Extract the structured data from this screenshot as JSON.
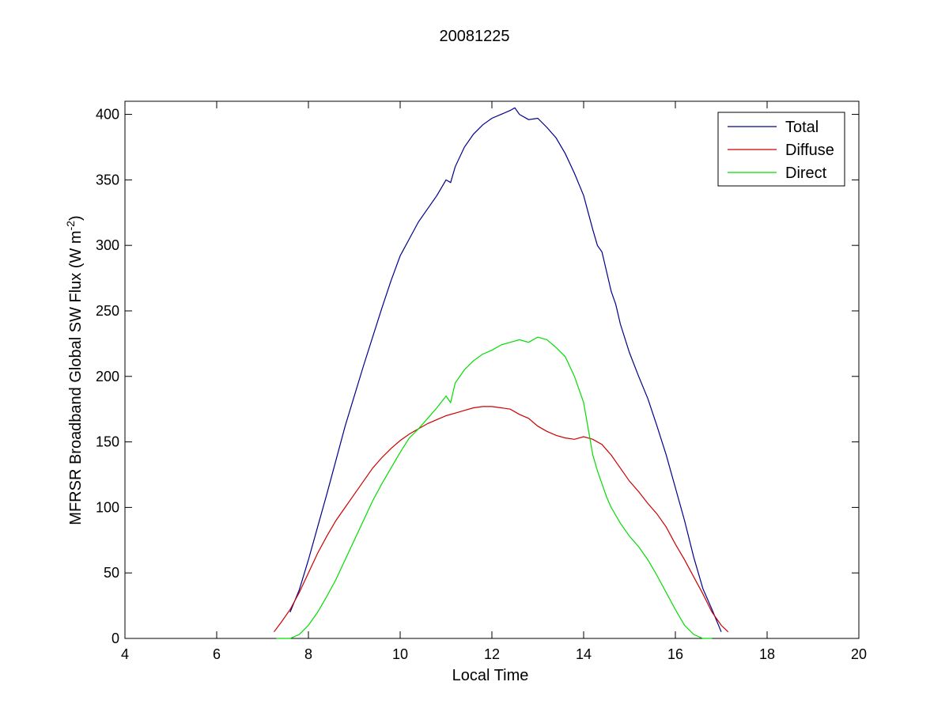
{
  "chart_data": {
    "type": "line",
    "title": "20081225",
    "xlabel": "Local Time",
    "ylabel_main": "MFRSR Broadband Global SW Flux (W m",
    "ylabel_sup": "-2",
    "ylabel_close": ")",
    "xlim": [
      4,
      20
    ],
    "ylim": [
      0,
      410
    ],
    "xticks": [
      4,
      6,
      8,
      10,
      12,
      14,
      16,
      18,
      20
    ],
    "yticks": [
      0,
      50,
      100,
      150,
      200,
      250,
      300,
      350,
      400
    ],
    "grid": false,
    "legend_position": "top-right",
    "series": [
      {
        "name": "Total",
        "color": "#00008b",
        "x": [
          7.6,
          7.8,
          8.0,
          8.2,
          8.4,
          8.6,
          8.8,
          9.0,
          9.2,
          9.4,
          9.6,
          9.8,
          10.0,
          10.2,
          10.4,
          10.6,
          10.8,
          11.0,
          11.1,
          11.2,
          11.4,
          11.6,
          11.8,
          12.0,
          12.2,
          12.4,
          12.5,
          12.6,
          12.8,
          13.0,
          13.2,
          13.4,
          13.6,
          13.8,
          14.0,
          14.1,
          14.2,
          14.3,
          14.4,
          14.5,
          14.6,
          14.7,
          14.8,
          15.0,
          15.2,
          15.4,
          15.6,
          15.8,
          16.0,
          16.2,
          16.4,
          16.6,
          16.8,
          17.0
        ],
        "y": [
          20,
          37,
          60,
          85,
          110,
          136,
          162,
          185,
          208,
          230,
          252,
          273,
          292,
          305,
          318,
          328,
          338,
          350,
          348,
          360,
          375,
          385,
          392,
          397,
          400,
          403,
          405,
          400,
          396,
          397,
          390,
          382,
          370,
          355,
          338,
          325,
          312,
          300,
          295,
          280,
          265,
          255,
          240,
          218,
          200,
          183,
          162,
          140,
          115,
          90,
          62,
          38,
          22,
          5
        ]
      },
      {
        "name": "Diffuse",
        "color": "#cc0000",
        "x": [
          7.25,
          7.4,
          7.6,
          7.8,
          8.0,
          8.2,
          8.4,
          8.6,
          8.8,
          9.0,
          9.2,
          9.4,
          9.6,
          9.8,
          10.0,
          10.2,
          10.4,
          10.6,
          10.8,
          11.0,
          11.2,
          11.4,
          11.6,
          11.8,
          12.0,
          12.2,
          12.4,
          12.6,
          12.8,
          13.0,
          13.2,
          13.4,
          13.6,
          13.8,
          14.0,
          14.2,
          14.4,
          14.6,
          14.8,
          15.0,
          15.2,
          15.4,
          15.6,
          15.8,
          16.0,
          16.2,
          16.4,
          16.6,
          16.8,
          17.0,
          17.15
        ],
        "y": [
          5,
          12,
          22,
          35,
          50,
          65,
          78,
          90,
          100,
          110,
          120,
          130,
          138,
          145,
          151,
          156,
          160,
          164,
          167,
          170,
          172,
          174,
          176,
          177,
          177,
          176,
          175,
          171,
          168,
          162,
          158,
          155,
          153,
          152,
          154,
          152,
          148,
          140,
          130,
          120,
          112,
          103,
          95,
          85,
          72,
          60,
          47,
          34,
          20,
          10,
          5
        ]
      },
      {
        "name": "Direct",
        "color": "#00dd00",
        "x": [
          7.3,
          7.6,
          7.8,
          8.0,
          8.2,
          8.4,
          8.6,
          8.8,
          9.0,
          9.2,
          9.4,
          9.6,
          9.8,
          10.0,
          10.2,
          10.4,
          10.6,
          10.8,
          11.0,
          11.1,
          11.2,
          11.4,
          11.6,
          11.8,
          12.0,
          12.2,
          12.4,
          12.6,
          12.8,
          13.0,
          13.2,
          13.4,
          13.6,
          13.8,
          14.0,
          14.1,
          14.2,
          14.3,
          14.4,
          14.5,
          14.6,
          14.8,
          15.0,
          15.2,
          15.4,
          15.6,
          15.8,
          16.0,
          16.2,
          16.4,
          16.6,
          16.8
        ],
        "y": [
          0,
          0,
          3,
          10,
          20,
          32,
          45,
          60,
          75,
          90,
          105,
          118,
          130,
          142,
          153,
          160,
          168,
          176,
          185,
          180,
          195,
          205,
          212,
          217,
          220,
          224,
          226,
          228,
          226,
          230,
          228,
          222,
          215,
          200,
          180,
          160,
          140,
          128,
          118,
          108,
          100,
          88,
          78,
          70,
          60,
          48,
          35,
          22,
          10,
          3,
          0,
          0
        ]
      }
    ]
  }
}
